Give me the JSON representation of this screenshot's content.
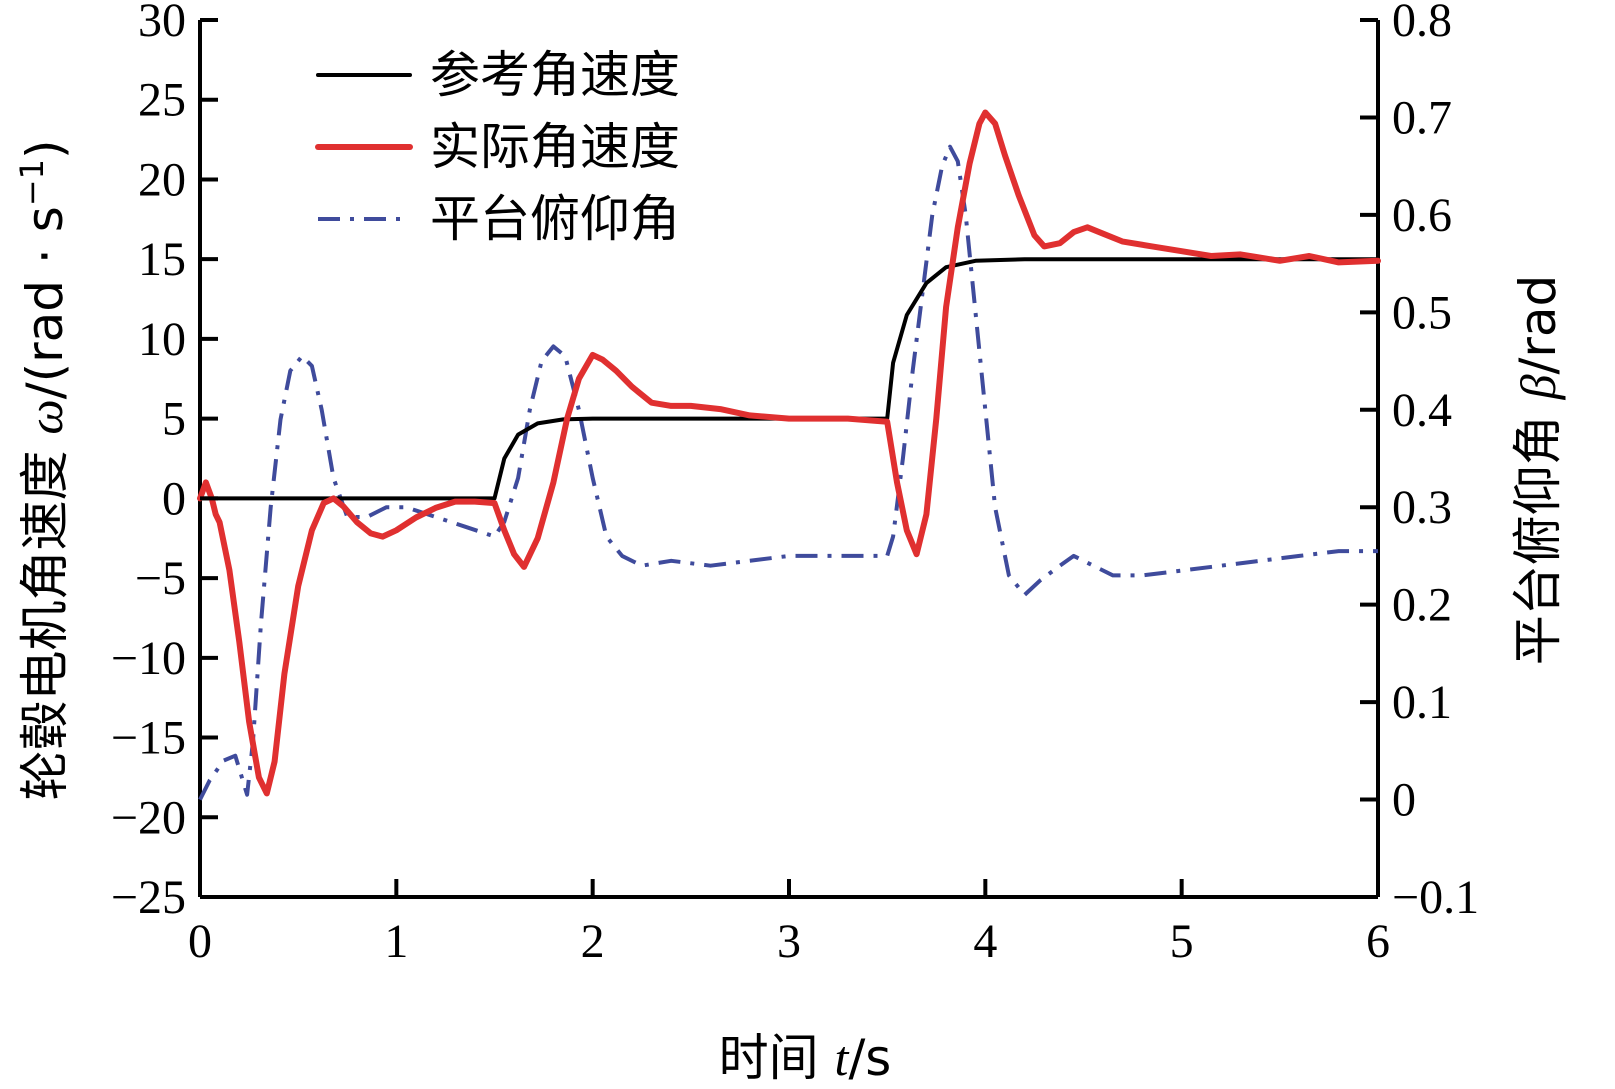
{
  "chart_data": {
    "type": "line",
    "xlabel": {
      "prefix": "时间 ",
      "var": "t",
      "suffix": "/s"
    },
    "ylabel_left": {
      "prefix": "轮毂电机角速度 ",
      "var": "ω",
      "suffix": "/(rad · s",
      "sup": "−1",
      "close": ")"
    },
    "ylabel_right": {
      "prefix": "平台俯仰角 ",
      "var": "β",
      "suffix": "/rad"
    },
    "xlim": [
      0,
      6
    ],
    "ylim_left": [
      -25,
      30
    ],
    "ylim_right": [
      -0.1,
      0.8
    ],
    "x_ticks": [
      "0",
      "1",
      "2",
      "3",
      "4",
      "5",
      "6"
    ],
    "y_left_ticks": [
      "30",
      "25",
      "20",
      "15",
      "10",
      "5",
      "0",
      "−5",
      "−10",
      "−15",
      "−20",
      "−25"
    ],
    "y_right_ticks": [
      "0.8",
      "0.7",
      "0.6",
      "0.5",
      "0.4",
      "0.3",
      "0.2",
      "0.1",
      "0",
      "−0.1"
    ],
    "legend_position": "top-left",
    "series": [
      {
        "name": "参考角速度",
        "axis": "left",
        "color": "#000000",
        "style": "solid",
        "points": [
          [
            0,
            0
          ],
          [
            1.5,
            0
          ],
          [
            1.55,
            2.5
          ],
          [
            1.62,
            4.0
          ],
          [
            1.72,
            4.7
          ],
          [
            1.85,
            4.95
          ],
          [
            2.0,
            5.0
          ],
          [
            3.5,
            5.0
          ],
          [
            3.53,
            8.5
          ],
          [
            3.6,
            11.5
          ],
          [
            3.7,
            13.5
          ],
          [
            3.8,
            14.5
          ],
          [
            3.95,
            14.9
          ],
          [
            4.2,
            15.0
          ],
          [
            6.0,
            15.0
          ]
        ]
      },
      {
        "name": "实际角速度",
        "axis": "left",
        "color": "#e03030",
        "style": "solid",
        "points": [
          [
            0,
            0
          ],
          [
            0.03,
            1
          ],
          [
            0.06,
            0
          ],
          [
            0.08,
            -1
          ],
          [
            0.1,
            -1.5
          ],
          [
            0.15,
            -4.5
          ],
          [
            0.2,
            -9
          ],
          [
            0.25,
            -14
          ],
          [
            0.3,
            -17.5
          ],
          [
            0.34,
            -18.5
          ],
          [
            0.38,
            -16.5
          ],
          [
            0.43,
            -11
          ],
          [
            0.5,
            -5.5
          ],
          [
            0.57,
            -2
          ],
          [
            0.63,
            -0.3
          ],
          [
            0.68,
            0
          ],
          [
            0.73,
            -0.5
          ],
          [
            0.8,
            -1.5
          ],
          [
            0.87,
            -2.2
          ],
          [
            0.93,
            -2.4
          ],
          [
            1.0,
            -2
          ],
          [
            1.1,
            -1.2
          ],
          [
            1.2,
            -0.6
          ],
          [
            1.3,
            -0.2
          ],
          [
            1.4,
            -0.2
          ],
          [
            1.5,
            -0.3
          ],
          [
            1.55,
            -2
          ],
          [
            1.6,
            -3.5
          ],
          [
            1.65,
            -4.3
          ],
          [
            1.72,
            -2.5
          ],
          [
            1.8,
            1
          ],
          [
            1.87,
            5
          ],
          [
            1.93,
            7.5
          ],
          [
            2.0,
            9
          ],
          [
            2.05,
            8.7
          ],
          [
            2.12,
            8
          ],
          [
            2.2,
            7
          ],
          [
            2.3,
            6
          ],
          [
            2.4,
            5.8
          ],
          [
            2.5,
            5.8
          ],
          [
            2.65,
            5.6
          ],
          [
            2.8,
            5.2
          ],
          [
            3.0,
            5.0
          ],
          [
            3.3,
            5.0
          ],
          [
            3.5,
            4.8
          ],
          [
            3.55,
            1
          ],
          [
            3.6,
            -2
          ],
          [
            3.65,
            -3.5
          ],
          [
            3.7,
            -1
          ],
          [
            3.75,
            5
          ],
          [
            3.8,
            12
          ],
          [
            3.86,
            17
          ],
          [
            3.92,
            21
          ],
          [
            3.97,
            23.5
          ],
          [
            4.0,
            24.2
          ],
          [
            4.05,
            23.5
          ],
          [
            4.1,
            21.5
          ],
          [
            4.17,
            19
          ],
          [
            4.25,
            16.5
          ],
          [
            4.3,
            15.8
          ],
          [
            4.38,
            16
          ],
          [
            4.45,
            16.7
          ],
          [
            4.52,
            17
          ],
          [
            4.6,
            16.6
          ],
          [
            4.7,
            16.1
          ],
          [
            4.85,
            15.8
          ],
          [
            5.0,
            15.5
          ],
          [
            5.15,
            15.2
          ],
          [
            5.3,
            15.3
          ],
          [
            5.5,
            14.9
          ],
          [
            5.65,
            15.2
          ],
          [
            5.8,
            14.8
          ],
          [
            6.0,
            14.9
          ]
        ]
      },
      {
        "name": "平台俯仰角",
        "axis": "right",
        "color": "#3f4b9c",
        "style": "dashdot",
        "points": [
          [
            0,
            0.0
          ],
          [
            0.05,
            0.02
          ],
          [
            0.12,
            0.04
          ],
          [
            0.18,
            0.045
          ],
          [
            0.21,
            0.025
          ],
          [
            0.24,
            0.005
          ],
          [
            0.27,
            0.06
          ],
          [
            0.31,
            0.18
          ],
          [
            0.36,
            0.3
          ],
          [
            0.41,
            0.39
          ],
          [
            0.46,
            0.44
          ],
          [
            0.52,
            0.455
          ],
          [
            0.57,
            0.445
          ],
          [
            0.62,
            0.4
          ],
          [
            0.68,
            0.33
          ],
          [
            0.75,
            0.29
          ],
          [
            0.85,
            0.29
          ],
          [
            0.95,
            0.3
          ],
          [
            1.05,
            0.3
          ],
          [
            1.2,
            0.29
          ],
          [
            1.35,
            0.28
          ],
          [
            1.5,
            0.27
          ],
          [
            1.55,
            0.285
          ],
          [
            1.62,
            0.33
          ],
          [
            1.68,
            0.4
          ],
          [
            1.74,
            0.45
          ],
          [
            1.8,
            0.465
          ],
          [
            1.86,
            0.455
          ],
          [
            1.93,
            0.4
          ],
          [
            2.0,
            0.33
          ],
          [
            2.07,
            0.27
          ],
          [
            2.15,
            0.25
          ],
          [
            2.25,
            0.24
          ],
          [
            2.4,
            0.245
          ],
          [
            2.6,
            0.24
          ],
          [
            2.8,
            0.245
          ],
          [
            3.0,
            0.25
          ],
          [
            3.2,
            0.25
          ],
          [
            3.5,
            0.25
          ],
          [
            3.53,
            0.27
          ],
          [
            3.58,
            0.35
          ],
          [
            3.63,
            0.44
          ],
          [
            3.68,
            0.52
          ],
          [
            3.73,
            0.6
          ],
          [
            3.78,
            0.65
          ],
          [
            3.82,
            0.67
          ],
          [
            3.86,
            0.655
          ],
          [
            3.9,
            0.6
          ],
          [
            3.95,
            0.5
          ],
          [
            4.0,
            0.4
          ],
          [
            4.05,
            0.3
          ],
          [
            4.12,
            0.23
          ],
          [
            4.2,
            0.21
          ],
          [
            4.28,
            0.225
          ],
          [
            4.38,
            0.24
          ],
          [
            4.45,
            0.25
          ],
          [
            4.55,
            0.24
          ],
          [
            4.65,
            0.23
          ],
          [
            4.8,
            0.23
          ],
          [
            5.0,
            0.235
          ],
          [
            5.2,
            0.24
          ],
          [
            5.4,
            0.245
          ],
          [
            5.6,
            0.25
          ],
          [
            5.8,
            0.255
          ],
          [
            6.0,
            0.255
          ]
        ]
      }
    ]
  }
}
